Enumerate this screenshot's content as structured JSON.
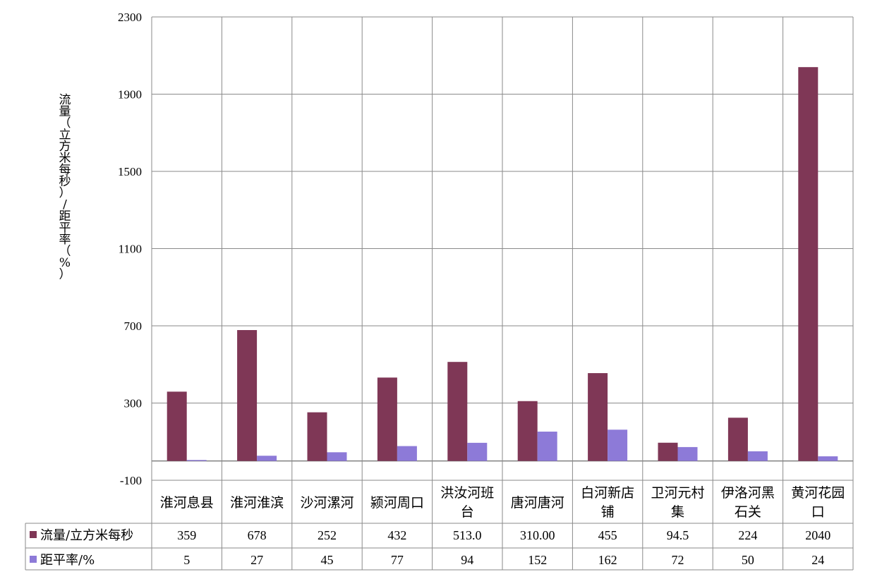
{
  "chart_data": {
    "type": "bar",
    "ylabel": [
      "流",
      "量",
      "（",
      "立",
      "方",
      "米",
      "每",
      "秒",
      "）",
      "/",
      "距",
      "平",
      "率",
      "（",
      "%",
      "）"
    ],
    "ylim": [
      -100,
      2300
    ],
    "yticks": [
      "-100",
      "300",
      "700",
      "1100",
      "1500",
      "1900",
      "2300"
    ],
    "categories": [
      [
        "淮河息县"
      ],
      [
        "淮河淮滨"
      ],
      [
        "沙河漯河"
      ],
      [
        "颍河周口"
      ],
      [
        "洪汝河班",
        "台"
      ],
      [
        "唐河唐河"
      ],
      [
        "白河新店",
        "铺"
      ],
      [
        "卫河元村",
        "集"
      ],
      [
        "伊洛河黑",
        "石关"
      ],
      [
        "黄河花园",
        "口"
      ]
    ],
    "grid": true,
    "legend": "data table",
    "series": [
      {
        "name": "流量/立方米每秒",
        "color": "#7f3756",
        "values": [
          359,
          678,
          252,
          432,
          513.0,
          310.0,
          455,
          94.5,
          224,
          2040
        ],
        "labels": [
          "359",
          "678",
          "252",
          "432",
          "513.0",
          "310.00",
          "455",
          "94.5",
          "224",
          "2040"
        ]
      },
      {
        "name": "距平率/%",
        "color": "#8d7ad8",
        "values": [
          5,
          27,
          45,
          77,
          94,
          152,
          162,
          72,
          50,
          24
        ],
        "labels": [
          "5",
          "27",
          "45",
          "77",
          "94",
          "152",
          "162",
          "72",
          "50",
          "24"
        ]
      }
    ]
  }
}
